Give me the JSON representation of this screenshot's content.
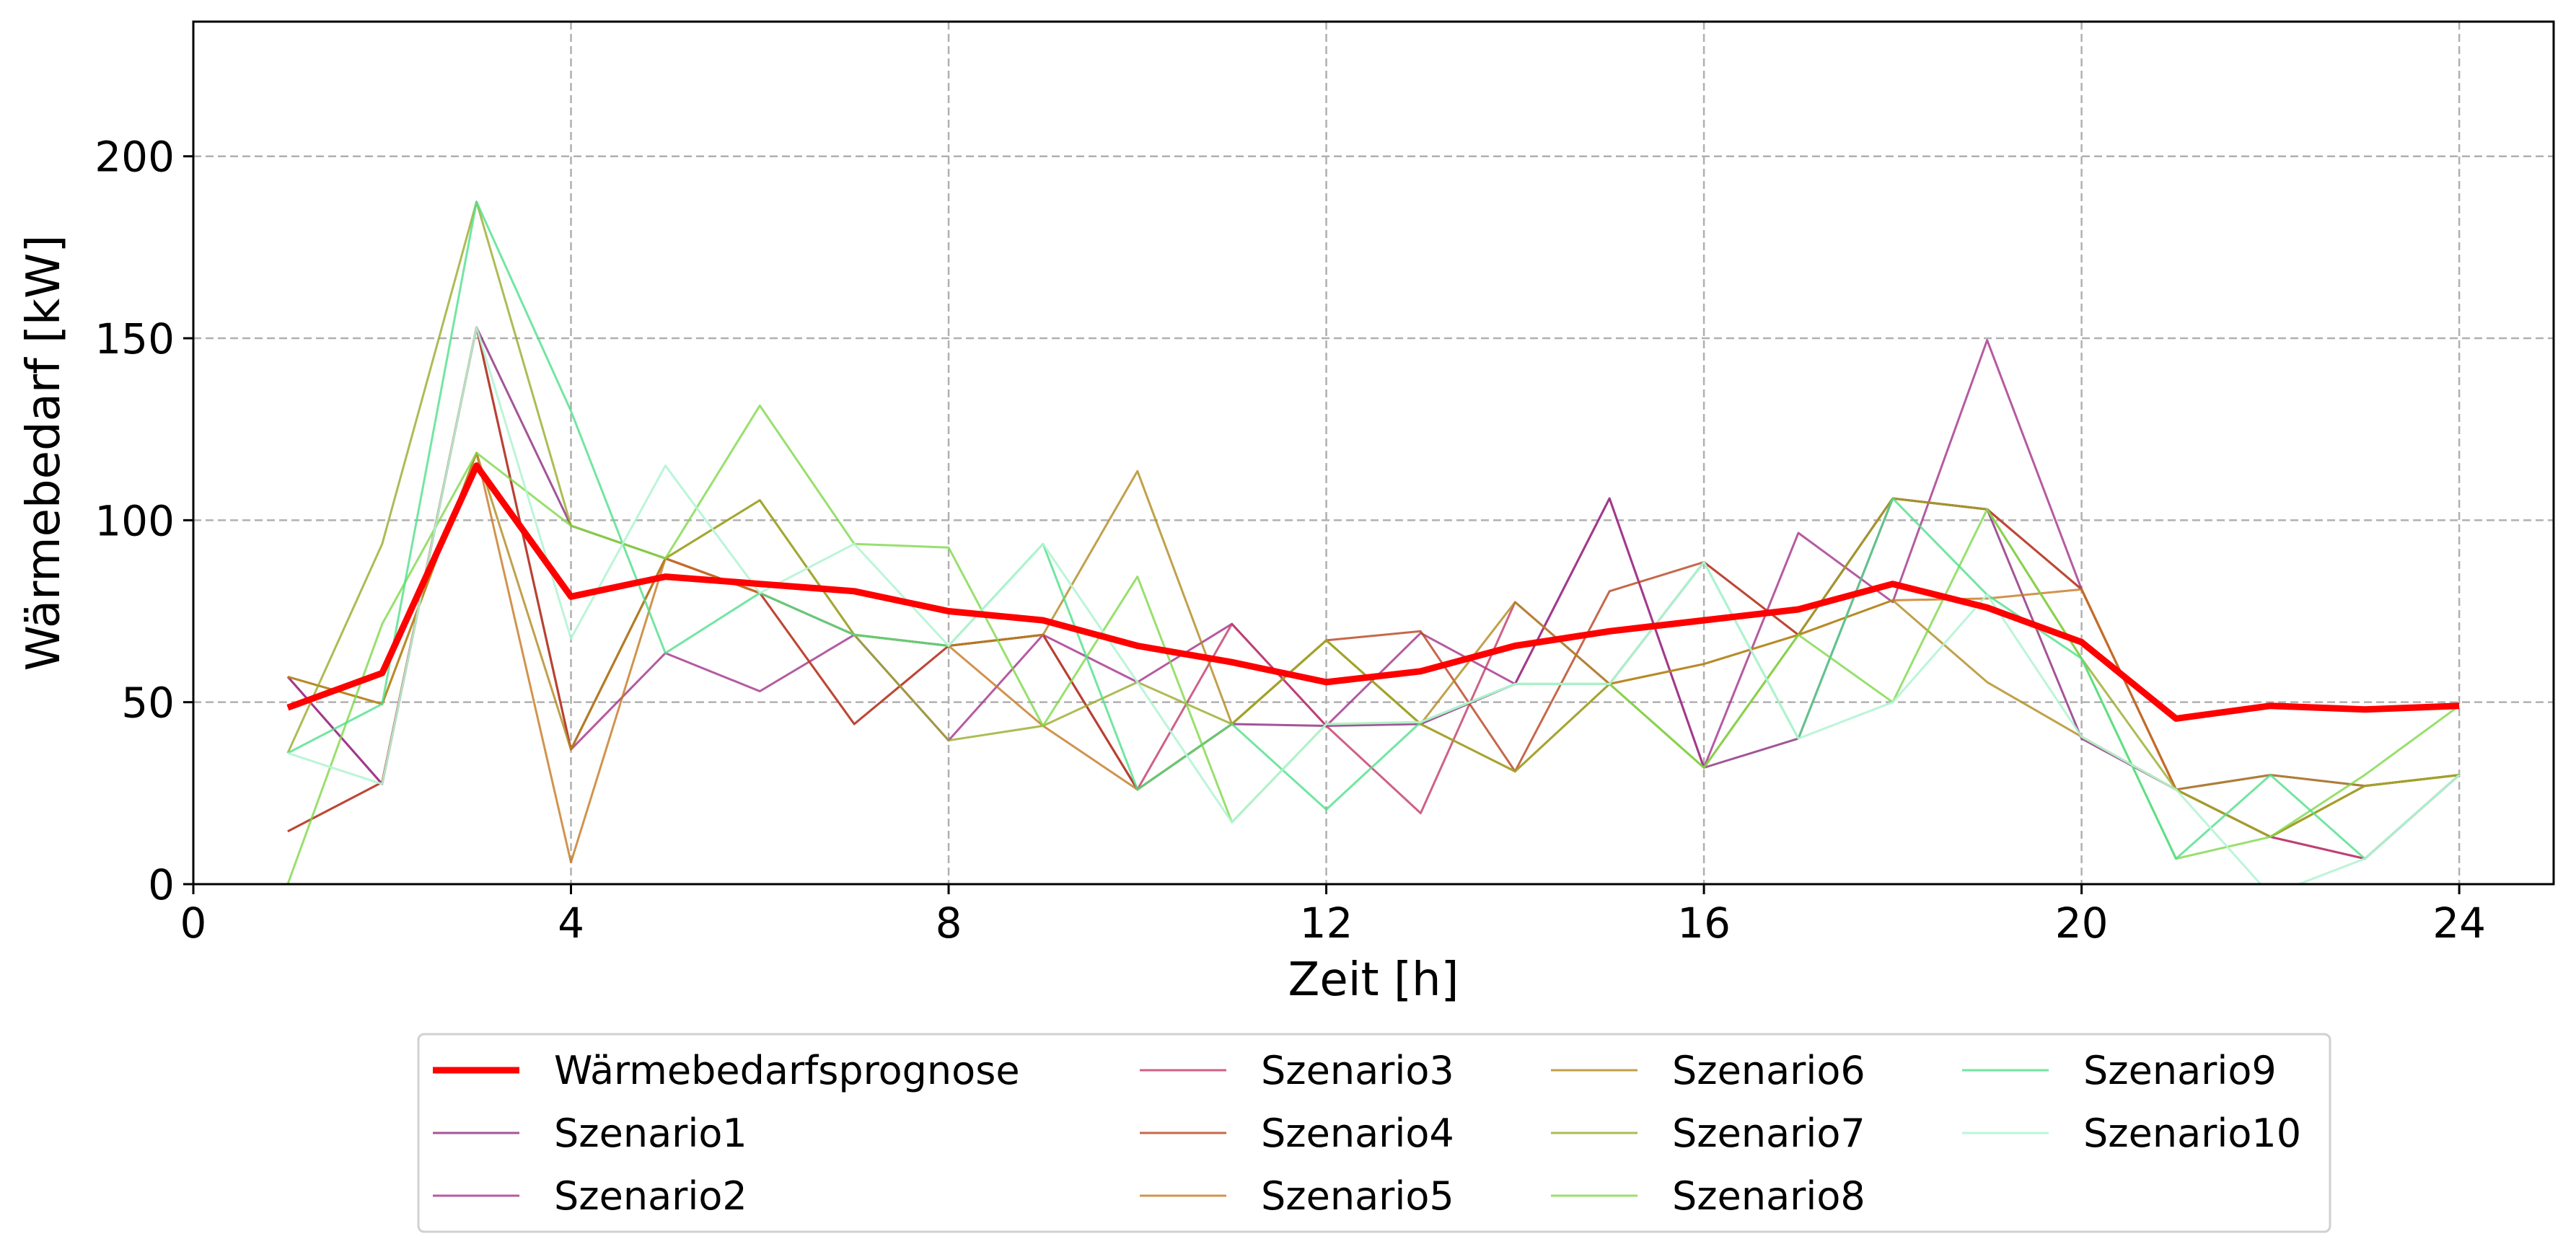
{
  "chart_data": {
    "type": "line",
    "title": "",
    "xlabel": "Zeit [h]",
    "ylabel": "Wärmebedarf [kW]",
    "xlim": [
      0,
      25
    ],
    "ylim": [
      0,
      237
    ],
    "xticks": [
      0,
      4,
      8,
      12,
      16,
      20,
      24
    ],
    "yticks": [
      0,
      50,
      100,
      150,
      200
    ],
    "grid": true,
    "legend_position": "bottom",
    "x": [
      1,
      2,
      3,
      4,
      5,
      6,
      7,
      8,
      9,
      10,
      11,
      12,
      13,
      14,
      15,
      16,
      17,
      18,
      19,
      20,
      21,
      22,
      23,
      24
    ],
    "series": [
      {
        "name": "Wärmebedarfsprognose",
        "color": "#ff0000",
        "width": 9,
        "opacity": 1,
        "values": [
          48.5,
          58,
          115,
          79,
          84.5,
          82.5,
          80.5,
          75,
          72.5,
          65.5,
          61,
          55.5,
          58.5,
          65.5,
          69.5,
          72.5,
          75.5,
          82.5,
          76,
          66.5,
          45.5,
          49,
          48,
          49
        ]
      },
      {
        "name": "Szenario1",
        "color": "#8b2a7e",
        "width": 3,
        "opacity": 0.8,
        "values": [
          57,
          27.5,
          153,
          98.5,
          89.5,
          80,
          68.5,
          65.5,
          68.5,
          26,
          44,
          43.5,
          44,
          55,
          106,
          32,
          40,
          106,
          103,
          40,
          26,
          30,
          27,
          30
        ]
      },
      {
        "name": "Szenario2",
        "color": "#a3328a",
        "width": 3,
        "opacity": 0.8,
        "values": [
          57,
          27.5,
          153,
          37,
          63.5,
          53,
          68.5,
          39.5,
          68.5,
          55.5,
          71.5,
          43.5,
          69,
          55,
          106,
          32,
          96.5,
          77.5,
          149.5,
          81,
          26,
          13,
          7,
          30
        ]
      },
      {
        "name": "Szenario3",
        "color": "#c23a6a",
        "width": 3,
        "opacity": 0.8,
        "values": [
          14.5,
          28,
          153,
          37,
          89.5,
          80,
          44,
          65.5,
          68.5,
          26,
          71.5,
          43.5,
          19.5,
          77.5,
          55,
          88.5,
          68.5,
          106,
          103,
          81,
          26,
          13,
          7,
          30
        ]
      },
      {
        "name": "Szenario4",
        "color": "#b8421e",
        "width": 3,
        "opacity": 0.8,
        "values": [
          14.5,
          28,
          153,
          37,
          89.5,
          80,
          44,
          65.5,
          68.5,
          26,
          44,
          67,
          69.5,
          31,
          80.5,
          88.5,
          68.5,
          106,
          103,
          81,
          26,
          13,
          27,
          30
        ]
      },
      {
        "name": "Szenario5",
        "color": "#c57822",
        "width": 3,
        "opacity": 0.8,
        "values": [
          57,
          49.5,
          118.5,
          6,
          89.5,
          80,
          68.5,
          65.5,
          43.5,
          26,
          44,
          67,
          44,
          31,
          55,
          60.5,
          68.5,
          78,
          78.5,
          81,
          26,
          13,
          27,
          30
        ]
      },
      {
        "name": "Szenario6",
        "color": "#b08a1e",
        "width": 3,
        "opacity": 0.8,
        "values": [
          57,
          49.5,
          118.5,
          37,
          89.5,
          105.5,
          68.5,
          65.5,
          68.5,
          113.5,
          44,
          67,
          44,
          77.5,
          55,
          60.5,
          68.5,
          78,
          55.5,
          40.5,
          26,
          30,
          27,
          30
        ]
      },
      {
        "name": "Szenario7",
        "color": "#9aaa2a",
        "width": 3,
        "opacity": 0.8,
        "values": [
          36,
          93.5,
          187.5,
          98.5,
          89.5,
          105.5,
          68.5,
          39.5,
          43.5,
          55.5,
          44,
          67,
          44,
          31,
          55,
          32,
          68.5,
          106,
          103,
          62,
          26,
          13,
          27,
          30
        ]
      },
      {
        "name": "Szenario8",
        "color": "#7ed84a",
        "width": 3,
        "opacity": 0.8,
        "values": [
          0,
          71.5,
          118.5,
          98.5,
          89.5,
          131.5,
          93.5,
          92.5,
          43.5,
          84.5,
          17,
          44,
          44.5,
          55,
          55,
          32,
          68.5,
          50,
          103,
          62,
          7,
          13,
          30,
          49
        ]
      },
      {
        "name": "Szenario9",
        "color": "#4fe08a",
        "width": 3,
        "opacity": 0.8,
        "values": [
          36,
          49.5,
          187.5,
          130,
          63.5,
          80,
          68.5,
          65.5,
          93.5,
          26,
          44,
          20.5,
          44.5,
          55,
          55,
          88.5,
          40,
          106,
          79.5,
          62,
          7,
          30,
          7,
          30
        ]
      },
      {
        "name": "Szenario10",
        "color": "#b4f4d4",
        "width": 3,
        "opacity": 0.9,
        "values": [
          36,
          27.5,
          153,
          67.5,
          115,
          80,
          93.5,
          65.5,
          93.5,
          55.5,
          17,
          44,
          44.5,
          55,
          55,
          88.5,
          40,
          50,
          79.5,
          40.5,
          26,
          -3,
          7,
          30
        ]
      }
    ]
  },
  "legend_rows": 3
}
